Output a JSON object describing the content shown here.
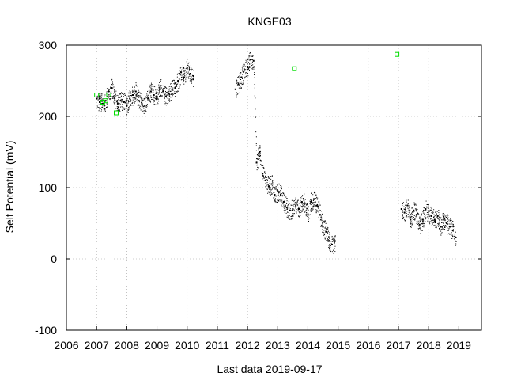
{
  "chart_data": {
    "type": "scatter",
    "title": "KNGE03",
    "xlabel": "Last data 2019-09-17",
    "ylabel": "Self Potential (mV)",
    "xlim": [
      2006,
      2019.75
    ],
    "ylim": [
      -100,
      300
    ],
    "x_ticks": [
      "2006",
      "2007",
      "2008",
      "2009",
      "2010",
      "2011",
      "2012",
      "2013",
      "2014",
      "2015",
      "2016",
      "2017",
      "2018",
      "2019"
    ],
    "y_ticks": [
      "-100",
      "0",
      "100",
      "200",
      "300"
    ],
    "grid": true,
    "legend": "none",
    "colors": {
      "series": "#000000",
      "markers": "#00dd00",
      "grid": "#999999"
    },
    "series": [
      {
        "style": "dense-dots",
        "color": "#000000",
        "x": [
          2007.0,
          2007.1,
          2007.2,
          2007.3,
          2007.4,
          2007.5,
          2007.6,
          2007.7,
          2007.8,
          2007.9,
          2008.0,
          2008.1,
          2008.2,
          2008.3,
          2008.4,
          2008.5,
          2008.6,
          2008.7,
          2008.8,
          2008.9,
          2009.0,
          2009.1,
          2009.2,
          2009.3,
          2009.4,
          2009.5,
          2009.6,
          2009.7,
          2009.8,
          2009.9,
          2010.0,
          2010.1,
          2010.2,
          2011.6,
          2011.7,
          2011.8,
          2011.9,
          2012.0,
          2012.1,
          2012.2,
          2012.3,
          2012.4,
          2012.5,
          2012.6,
          2012.7,
          2012.8,
          2012.9,
          2013.0,
          2013.1,
          2013.2,
          2013.3,
          2013.4,
          2013.5,
          2013.6,
          2013.7,
          2013.8,
          2013.9,
          2014.0,
          2014.1,
          2014.2,
          2014.3,
          2014.4,
          2014.5,
          2014.6,
          2014.7,
          2014.8,
          2014.9,
          2017.1,
          2017.2,
          2017.3,
          2017.4,
          2017.5,
          2017.6,
          2017.7,
          2017.8,
          2017.9,
          2018.0,
          2018.1,
          2018.2,
          2018.3,
          2018.4,
          2018.5,
          2018.6,
          2018.7,
          2018.8,
          2018.9
        ],
        "y": [
          225,
          220,
          218,
          222,
          235,
          240,
          225,
          218,
          222,
          220,
          215,
          225,
          230,
          235,
          222,
          218,
          215,
          225,
          235,
          230,
          228,
          240,
          235,
          228,
          232,
          238,
          240,
          250,
          262,
          255,
          268,
          260,
          252,
          238,
          245,
          255,
          265,
          270,
          280,
          278,
          135,
          150,
          120,
          110,
          102,
          105,
          90,
          95,
          90,
          80,
          72,
          68,
          70,
          75,
          70,
          80,
          78,
          62,
          80,
          84,
          75,
          62,
          45,
          38,
          25,
          20,
          25,
          70,
          65,
          75,
          55,
          68,
          62,
          48,
          55,
          70,
          62,
          60,
          55,
          60,
          45,
          55,
          50,
          45,
          40,
          30
        ]
      },
      {
        "style": "open-squares",
        "color": "#00dd00",
        "x": [
          2007.0,
          2007.2,
          2007.3,
          2007.4,
          2007.65,
          2013.55,
          2016.95
        ],
        "y": [
          230,
          220,
          222,
          230,
          205,
          267,
          287
        ]
      }
    ]
  }
}
